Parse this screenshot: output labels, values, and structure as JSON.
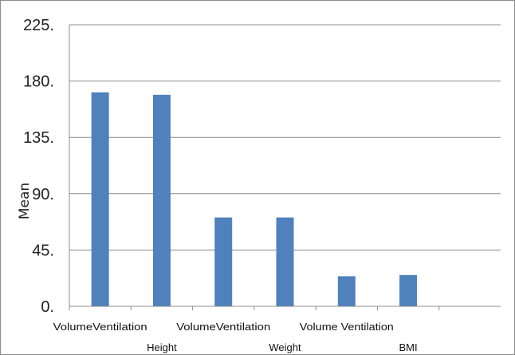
{
  "chart_data": {
    "type": "bar",
    "ylabel": "Mean",
    "xlabel": "",
    "ylim": [
      0,
      225
    ],
    "y_ticks": [
      "0.",
      "45.",
      "90.",
      "135.",
      "180.",
      "225."
    ],
    "y_tick_values": [
      0,
      45,
      90,
      135,
      180,
      225
    ],
    "grid": true,
    "categories": [
      "VolumeVentilation",
      "Height",
      "VolumeVentilation",
      "Weight",
      "Volume Ventilation",
      "BMI",
      ""
    ],
    "series": [
      {
        "values": [
          171,
          169,
          71,
          71,
          24,
          25,
          null
        ]
      }
    ],
    "colors": {
      "bar": "#4f81bd",
      "grid": "#8c8c8c",
      "axis": "#8c8c8c"
    }
  }
}
